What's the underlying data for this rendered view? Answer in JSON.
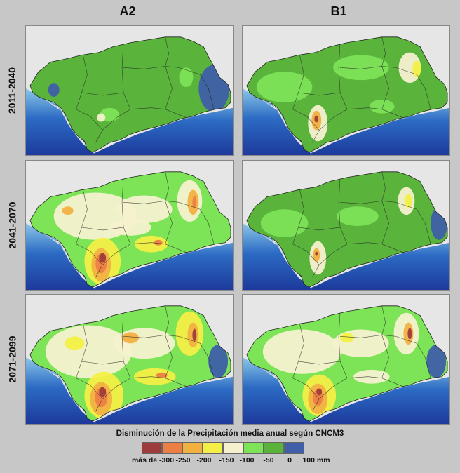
{
  "columns": [
    "A2",
    "B1"
  ],
  "rows": [
    "2011-2040",
    "2041-2070",
    "2071-2099"
  ],
  "legend": {
    "title": "Disminución de la Precipitación media anual según CNCM3",
    "ticks": [
      "más de -300",
      "-250",
      "-200",
      "-150",
      "-100",
      "-50",
      "0",
      "100 mm"
    ],
    "colors": [
      "#9e3b3b",
      "#ec7f44",
      "#f2b043",
      "#f3ef46",
      "#f5f1cf",
      "#7de357",
      "#5ab43c",
      "#3f5fa8"
    ]
  },
  "map_colors": {
    "sea_deep": "#1d3a9c",
    "sea_mid": "#2c6bc4",
    "sea_shallow": "#8cc7e8",
    "land_outside": "#e6e6e6",
    "decrease_lt_neg300": "#9e3b3b",
    "decrease_neg250": "#ec7f44",
    "decrease_neg200": "#f2b043",
    "decrease_neg150": "#f3ef46",
    "decrease_neg100": "#f5f1cf",
    "decrease_neg50": "#7de357",
    "decrease_0": "#5ab43c",
    "increase_100": "#3f5fa8",
    "borders": "#222222"
  }
}
